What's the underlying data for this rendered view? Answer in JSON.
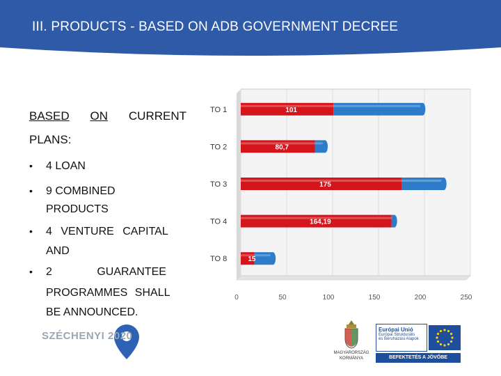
{
  "header": {
    "title": "III. PRODUCTS - BASED ON ADB GOVERNMENT DECREE"
  },
  "content": {
    "heading_words": [
      "BASED",
      "ON",
      "CURRENT",
      "PLANS:"
    ],
    "bullets": [
      {
        "lines": [
          "4 LOAN"
        ]
      },
      {
        "lines": [
          "9 COMBINED",
          "PRODUCTS"
        ]
      },
      {
        "lines": [
          "4 VENTURE CAPITAL",
          "AND"
        ]
      },
      {
        "lines": [
          "2 GUARANTEE",
          "PROGRAMMES SHALL",
          "BE ANNOUNCED."
        ]
      }
    ]
  },
  "chart_data": {
    "type": "bar",
    "orientation": "horizontal",
    "categories": [
      "TO 1",
      "TO 2",
      "TO 3",
      "TO 4",
      "TO 8"
    ],
    "series": [
      {
        "values": [
          101,
          80.7,
          175,
          164.19,
          15
        ],
        "color": "#d4151b"
      },
      {
        "values": [
          97,
          11,
          46,
          3,
          20
        ],
        "color": "#2d7cc9"
      }
    ],
    "data_labels": [
      "101",
      "80,7",
      "175",
      "164,19",
      "15"
    ],
    "xticks": [
      "0",
      "50",
      "100",
      "150",
      "200",
      "250"
    ],
    "xlim": [
      0,
      250
    ]
  },
  "logos": {
    "szechenyi": "SZÉCHENYI 2020",
    "gov_line1": "MAGYARORSZÁG",
    "gov_line2": "KORMÁNYA",
    "eu_line1": "Európai Unió",
    "eu_line2": "Európai Strukturális",
    "eu_line3": "és Beruházási Alapok",
    "eu_slogan": "BEFEKTETÉS A JÖVŐBE"
  },
  "colors": {
    "header": "#2e5aa8",
    "bar_red": "#d4151b",
    "bar_blue": "#2d7cc9",
    "eu_blue": "#1f4f9c"
  }
}
